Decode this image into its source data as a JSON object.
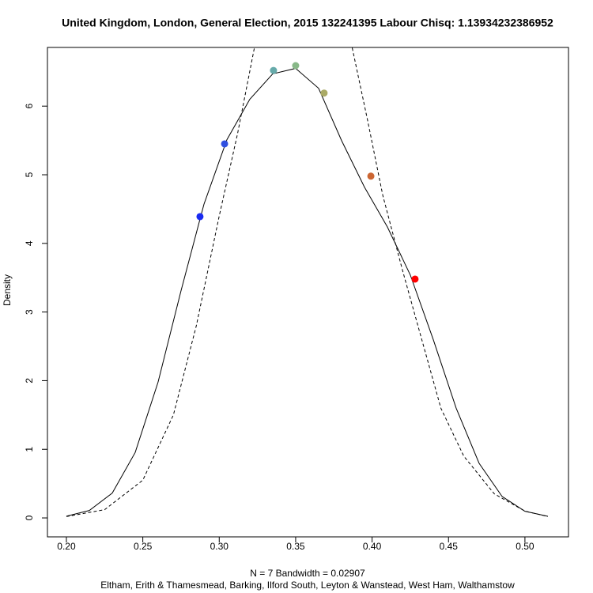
{
  "chart_data": {
    "type": "line",
    "title": "United Kingdom, London, General Election, 2015 132241395 Labour Chisq: 1.13934232386952",
    "ylabel": "Density",
    "xlabel": "N = 7   Bandwidth = 0.02907",
    "subtitle": "Eltham, Erith & Thamesmead, Barking, Ilford South, Leyton & Wanstead, West Ham, Walthamstow",
    "xlim": [
      0.1876,
      0.5285
    ],
    "ylim": [
      -0.276,
      6.855
    ],
    "xticks": [
      {
        "value": 0.2,
        "label": "0.20"
      },
      {
        "value": 0.25,
        "label": "0.25"
      },
      {
        "value": 0.3,
        "label": "0.30"
      },
      {
        "value": 0.35,
        "label": "0.35"
      },
      {
        "value": 0.4,
        "label": "0.40"
      },
      {
        "value": 0.45,
        "label": "0.45"
      },
      {
        "value": 0.5,
        "label": "0.50"
      }
    ],
    "yticks": [
      0,
      1,
      2,
      3,
      4,
      5,
      6
    ],
    "series": [
      {
        "style": "solid",
        "color": "#000000",
        "x": [
          0.2,
          0.215,
          0.23,
          0.245,
          0.26,
          0.275,
          0.29,
          0.305,
          0.32,
          0.335,
          0.35,
          0.365,
          0.38,
          0.395,
          0.41,
          0.425,
          0.44,
          0.455,
          0.47,
          0.485,
          0.5,
          0.515
        ],
        "values": [
          0.025,
          0.108,
          0.362,
          0.953,
          1.98,
          3.31,
          4.57,
          5.51,
          6.1,
          6.47,
          6.55,
          6.26,
          5.5,
          4.82,
          4.24,
          3.54,
          2.6,
          1.6,
          0.797,
          0.314,
          0.097,
          0.023
        ]
      },
      {
        "style": "dashed",
        "color": "#000000",
        "x": [
          0.2,
          0.225,
          0.25,
          0.27,
          0.285,
          0.3,
          0.312,
          0.323,
          0.355,
          0.387,
          0.397,
          0.407,
          0.42,
          0.43,
          0.445,
          0.46,
          0.48,
          0.5,
          0.515
        ],
        "values": [
          0.02,
          0.12,
          0.55,
          1.5,
          2.8,
          4.4,
          5.6,
          6.85,
          null,
          6.85,
          5.8,
          4.7,
          3.6,
          2.8,
          1.6,
          0.9,
          0.35,
          0.1,
          0.02
        ]
      },
      {
        "style": "points",
        "x": [
          0.2874,
          0.3035,
          0.3355,
          0.35,
          0.3686,
          0.3992,
          0.4281
        ],
        "values": [
          4.39,
          5.45,
          6.52,
          6.59,
          6.19,
          4.98,
          3.48
        ],
        "colors": [
          "#1a2bf0",
          "#3050e0",
          "#66aaaa",
          "#88b888",
          "#aaaa66",
          "#cc6633",
          "#ff0000"
        ]
      }
    ]
  }
}
